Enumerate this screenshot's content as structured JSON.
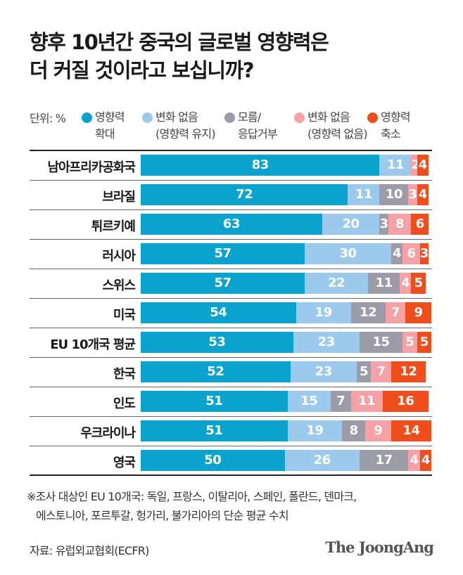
{
  "title_line1": "향후 10년간 중국의 글로벌 영향력은",
  "title_line2": "더 커질 것이라고 보십니까?",
  "chart_data": {
    "type": "bar",
    "orientation": "horizontal",
    "stacked": true,
    "unit_label": "단위: %",
    "categories": [
      "남아프리카공화국",
      "브라질",
      "튀르키예",
      "러시아",
      "스위스",
      "미국",
      "EU 10개국 평균",
      "한국",
      "인도",
      "우크라이나",
      "영국"
    ],
    "series": [
      {
        "name": "영향력\n확대",
        "color": "#0aa2cf",
        "values": [
          83,
          72,
          63,
          57,
          57,
          54,
          53,
          52,
          51,
          51,
          50
        ]
      },
      {
        "name": "변화 없음\n(영향력 유지)",
        "color": "#9ccaec",
        "values": [
          11,
          11,
          20,
          30,
          22,
          19,
          23,
          23,
          15,
          19,
          26
        ]
      },
      {
        "name": "모름/\n응답거부",
        "color": "#9c9ca8",
        "values": [
          0,
          10,
          3,
          4,
          11,
          12,
          15,
          5,
          7,
          8,
          17
        ]
      },
      {
        "name": "변화 없음\n(영향력 없음)",
        "color": "#f5a1a6",
        "values": [
          2,
          3,
          8,
          6,
          4,
          7,
          5,
          7,
          11,
          9,
          4
        ]
      },
      {
        "name": "영향력\n축소",
        "color": "#f04d1c",
        "values": [
          4,
          4,
          6,
          3,
          5,
          9,
          5,
          12,
          16,
          14,
          4
        ]
      }
    ],
    "xlim": [
      0,
      100
    ],
    "data_labels": true
  },
  "note_line1": "※조사 대상인 EU 10개국: 독일, 프랑스, 이탈리아, 스페인, 폴란드, 덴마크,",
  "note_line2": "에스토니아, 포르투갈, 헝가리, 불가리아의 단순 평균 수치",
  "source": "자료: 유럽외교협회(ECFR)",
  "logo": "The JoongAng"
}
